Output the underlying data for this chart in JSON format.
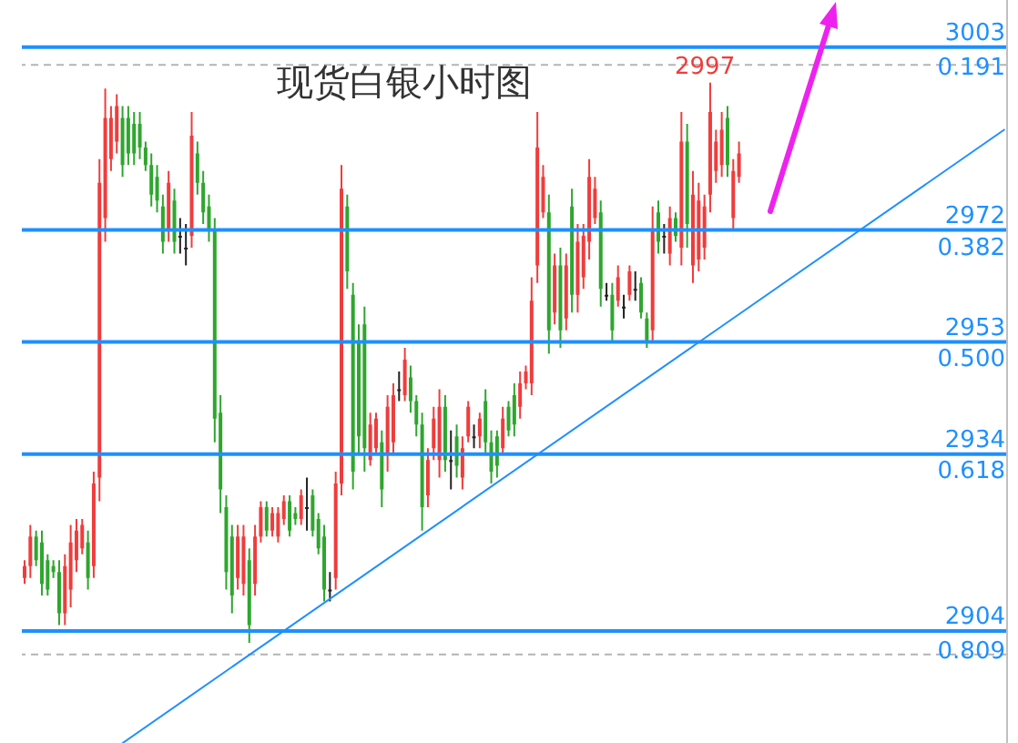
{
  "chart_data": {
    "type": "candlestick",
    "title": "现货白银小时图",
    "categories": [
      null,
      null,
      null,
      null,
      null,
      null,
      null,
      null,
      null,
      null,
      null,
      null,
      null,
      null,
      null,
      null,
      null,
      null,
      null,
      null,
      null,
      null,
      null,
      null,
      null,
      null,
      null,
      null,
      null,
      null,
      null,
      null,
      null,
      null,
      null,
      null,
      null,
      null,
      null,
      null,
      null,
      null,
      null,
      null,
      null,
      null,
      null,
      null,
      null,
      null,
      null,
      null,
      null,
      null,
      null,
      null,
      null,
      null,
      null,
      null,
      null,
      null,
      null,
      null,
      null,
      null,
      null,
      null,
      null,
      null,
      null,
      null,
      null,
      null,
      null,
      null,
      null,
      null,
      null,
      null,
      null,
      null,
      null,
      null,
      null,
      null,
      null,
      null,
      null,
      null,
      null,
      null,
      null,
      null,
      null,
      null,
      null,
      null,
      null,
      null,
      null,
      null,
      null,
      null,
      null,
      null,
      null,
      null,
      null,
      null,
      null,
      null,
      null,
      null,
      null,
      null,
      null,
      null,
      null,
      null,
      null,
      null,
      null,
      null,
      null,
      null,
      null,
      null,
      null,
      null,
      null,
      null,
      null,
      null,
      null,
      null,
      null,
      null,
      null,
      null,
      null,
      null,
      null,
      null,
      null,
      null,
      null,
      null,
      null,
      null,
      null,
      null,
      null,
      null,
      null,
      null,
      null,
      null,
      null,
      null,
      null,
      null,
      null,
      null,
      null,
      null,
      null,
      null,
      null,
      null,
      null
    ],
    "ohlc": [
      [
        2913,
        2916,
        2912,
        2915
      ],
      [
        2915,
        2922,
        2913,
        2920
      ],
      [
        2920,
        2921,
        2915,
        2916
      ],
      [
        2919,
        2921,
        2910,
        2912
      ],
      [
        2916,
        2917,
        2910,
        2911
      ],
      [
        2915,
        2916,
        2913,
        2914
      ],
      [
        2914,
        2916,
        2905,
        2907
      ],
      [
        2907,
        2917,
        2905,
        2915
      ],
      [
        2911,
        2922,
        2908,
        2919
      ],
      [
        2916,
        2923,
        2914,
        2921
      ],
      [
        2918,
        2923,
        2917,
        2922
      ],
      [
        2919,
        2921,
        2911,
        2913
      ],
      [
        2915,
        2931,
        2913,
        2929
      ],
      [
        2930,
        2984,
        2926,
        2980
      ],
      [
        2974,
        2996,
        2970,
        2991
      ],
      [
        2984,
        2993,
        2982,
        2991
      ],
      [
        2987,
        2995,
        2985,
        2993
      ],
      [
        2991,
        2993,
        2981,
        2983
      ],
      [
        2991,
        2993,
        2983,
        2985
      ],
      [
        2990,
        2992,
        2983,
        2985
      ],
      [
        2990,
        2992,
        2984,
        2986
      ],
      [
        2986,
        2987,
        2982,
        2983
      ],
      [
        2983,
        2985,
        2976,
        2978
      ],
      [
        2981,
        2983,
        2975,
        2977
      ],
      [
        2976,
        2978,
        2968,
        2970
      ],
      [
        2972,
        2982,
        2970,
        2980
      ],
      [
        2977,
        2979,
        2968,
        2970
      ],
      [
        2971,
        2974,
        2968,
        2971
      ],
      [
        2969,
        2973,
        2966,
        2969
      ],
      [
        2971,
        2992,
        2969,
        2988
      ],
      [
        2985,
        2987,
        2978,
        2980
      ],
      [
        2980,
        2982,
        2973,
        2975
      ],
      [
        2976,
        2978,
        2970,
        2972
      ],
      [
        2972,
        2974,
        2936,
        2940
      ],
      [
        2941,
        2944,
        2924,
        2928
      ],
      [
        2925,
        2927,
        2911,
        2914
      ],
      [
        2920,
        2922,
        2907,
        2910
      ],
      [
        2913,
        2922,
        2911,
        2920
      ],
      [
        2912,
        2922,
        2910,
        2920
      ],
      [
        2916,
        2918,
        2902,
        2905
      ],
      [
        2912,
        2922,
        2910,
        2920
      ],
      [
        2920,
        2926,
        2919,
        2925
      ],
      [
        2925,
        2926,
        2920,
        2921
      ],
      [
        2921,
        2925,
        2920,
        2924
      ],
      [
        2920,
        2925,
        2919,
        2924
      ],
      [
        2923,
        2927,
        2922,
        2926
      ],
      [
        2926,
        2927,
        2920,
        2921
      ],
      [
        2924,
        2925,
        2922,
        2923
      ],
      [
        2923,
        2928,
        2922,
        2927
      ],
      [
        2925,
        2930,
        2921,
        2925
      ],
      [
        2927,
        2928,
        2920,
        2921
      ],
      [
        2923,
        2924,
        2917,
        2918
      ],
      [
        2920,
        2922,
        2909,
        2911
      ],
      [
        2911,
        2914,
        2909,
        2911
      ],
      [
        2913,
        2931,
        2911,
        2929
      ],
      [
        2929,
        2983,
        2927,
        2979
      ],
      [
        2976,
        2978,
        2962,
        2965
      ],
      [
        2961,
        2963,
        2928,
        2931
      ],
      [
        2953,
        2956,
        2934,
        2937
      ],
      [
        2956,
        2959,
        2931,
        2935
      ],
      [
        2933,
        2941,
        2932,
        2939
      ],
      [
        2935,
        2941,
        2934,
        2940
      ],
      [
        2936,
        2938,
        2925,
        2928
      ],
      [
        2934,
        2944,
        2931,
        2942
      ],
      [
        2936,
        2946,
        2934,
        2944
      ],
      [
        2945,
        2948,
        2943,
        2945
      ],
      [
        2944,
        2952,
        2943,
        2950
      ],
      [
        2947,
        2949,
        2941,
        2943
      ],
      [
        2943,
        2944,
        2937,
        2939
      ],
      [
        2939,
        2941,
        2921,
        2925
      ],
      [
        2927,
        2935,
        2925,
        2933
      ],
      [
        2935,
        2942,
        2933,
        2940
      ],
      [
        2933,
        2945,
        2930,
        2942
      ],
      [
        2942,
        2944,
        2931,
        2933
      ],
      [
        2933,
        2938,
        2928,
        2933
      ],
      [
        2937,
        2939,
        2930,
        2932
      ],
      [
        2930,
        2937,
        2928,
        2935
      ],
      [
        2937,
        2943,
        2936,
        2942
      ],
      [
        2937,
        2939,
        2935,
        2937
      ],
      [
        2937,
        2941,
        2935,
        2940
      ],
      [
        2943,
        2945,
        2934,
        2936
      ],
      [
        2936,
        2938,
        2929,
        2931
      ],
      [
        2937,
        2938,
        2930,
        2932
      ],
      [
        2935,
        2942,
        2934,
        2940
      ],
      [
        2942,
        2943,
        2937,
        2938
      ],
      [
        2944,
        2946,
        2937,
        2939
      ],
      [
        2942,
        2948,
        2940,
        2946
      ],
      [
        2946,
        2949,
        2945,
        2948
      ],
      [
        2946,
        2964,
        2944,
        2960
      ],
      [
        2966,
        2992,
        2963,
        2986
      ],
      [
        2975,
        2983,
        2974,
        2981
      ],
      [
        2975,
        2978,
        2951,
        2955
      ],
      [
        2958,
        2968,
        2956,
        2966
      ],
      [
        2966,
        2969,
        2952,
        2955
      ],
      [
        2957,
        2968,
        2955,
        2966
      ],
      [
        2976,
        2979,
        2958,
        2961
      ],
      [
        2961,
        2973,
        2958,
        2970
      ],
      [
        2964,
        2973,
        2962,
        2971
      ],
      [
        2970,
        2984,
        2967,
        2981
      ],
      [
        2974,
        2981,
        2973,
        2979
      ],
      [
        2975,
        2977,
        2959,
        2962
      ],
      [
        2961,
        2963,
        2960,
        2961
      ],
      [
        2961,
        2963,
        2953,
        2955
      ],
      [
        2960,
        2966,
        2959,
        2964
      ],
      [
        2959,
        2961,
        2957,
        2959
      ],
      [
        2961,
        2966,
        2960,
        2965
      ],
      [
        2962,
        2965,
        2960,
        2962
      ],
      [
        2963,
        2964,
        2957,
        2958
      ],
      [
        2957,
        2958,
        2952,
        2953
      ],
      [
        2955,
        2976,
        2953,
        2972
      ],
      [
        2975,
        2977,
        2968,
        2970
      ],
      [
        2971,
        2973,
        2968,
        2971
      ],
      [
        2968,
        2976,
        2966,
        2974
      ],
      [
        2974,
        2975,
        2970,
        2971
      ],
      [
        2969,
        2992,
        2966,
        2987
      ],
      [
        2987,
        2990,
        2969,
        2973
      ],
      [
        2966,
        2982,
        2963,
        2978
      ],
      [
        2967,
        2980,
        2965,
        2977
      ],
      [
        2969,
        2978,
        2967,
        2976
      ],
      [
        2978,
        2997,
        2975,
        2992
      ],
      [
        2982,
        2989,
        2980,
        2987
      ],
      [
        2983,
        2992,
        2981,
        2989
      ],
      [
        2991,
        2993,
        2981,
        2983
      ],
      [
        2974,
        2984,
        2972,
        2982
      ],
      [
        2981,
        2987,
        2980,
        2985
      ],
      null,
      null,
      null,
      null,
      null,
      null,
      null,
      null,
      null,
      null,
      null,
      null,
      null,
      null,
      null,
      null,
      null,
      null,
      null,
      null,
      null,
      null,
      null,
      null,
      null,
      null,
      null,
      null,
      null,
      null,
      null,
      null,
      null,
      null,
      null,
      null,
      null,
      null,
      null,
      null,
      null,
      null,
      null,
      null,
      null,
      null
    ],
    "colors": [
      "#f03c3c",
      "#f03c3c",
      "#2ea62e",
      "#2ea62e",
      "#2ea62e",
      "#2ea62e",
      "#2ea62e",
      "#f03c3c",
      "#f03c3c",
      "#f03c3c",
      "#f03c3c",
      "#2ea62e",
      "#f03c3c",
      "#f03c3c",
      "#f03c3c",
      "#f03c3c",
      "#f03c3c",
      "#2ea62e",
      "#2ea62e",
      "#2ea62e",
      "#2ea62e",
      "#2ea62e",
      "#2ea62e",
      "#2ea62e",
      "#2ea62e",
      "#f03c3c",
      "#2ea62e",
      "#222222",
      "#222222",
      "#f03c3c",
      "#2ea62e",
      "#2ea62e",
      "#2ea62e",
      "#2ea62e",
      "#2ea62e",
      "#2ea62e",
      "#2ea62e",
      "#f03c3c",
      "#f03c3c",
      "#2ea62e",
      "#f03c3c",
      "#f03c3c",
      "#2ea62e",
      "#f03c3c",
      "#f03c3c",
      "#f03c3c",
      "#2ea62e",
      "#2ea62e",
      "#f03c3c",
      "#222222",
      "#2ea62e",
      "#2ea62e",
      "#2ea62e",
      "#222222",
      "#f03c3c",
      "#f03c3c",
      "#2ea62e",
      "#2ea62e",
      "#2ea62e",
      "#2ea62e",
      "#f03c3c",
      "#f03c3c",
      "#2ea62e",
      "#f03c3c",
      "#f03c3c",
      "#222222",
      "#f03c3c",
      "#2ea62e",
      "#2ea62e",
      "#2ea62e",
      "#f03c3c",
      "#f03c3c",
      "#f03c3c",
      "#2ea62e",
      "#222222",
      "#2ea62e",
      "#f03c3c",
      "#f03c3c",
      "#222222",
      "#f03c3c",
      "#2ea62e",
      "#2ea62e",
      "#2ea62e",
      "#f03c3c",
      "#2ea62e",
      "#2ea62e",
      "#f03c3c",
      "#f03c3c",
      "#f03c3c",
      "#f03c3c",
      "#f03c3c",
      "#2ea62e",
      "#f03c3c",
      "#2ea62e",
      "#f03c3c",
      "#2ea62e",
      "#f03c3c",
      "#f03c3c",
      "#f03c3c",
      "#f03c3c",
      "#2ea62e",
      "#222222",
      "#2ea62e",
      "#f03c3c",
      "#222222",
      "#f03c3c",
      "#222222",
      "#2ea62e",
      "#2ea62e",
      "#f03c3c",
      "#2ea62e",
      "#222222",
      "#f03c3c",
      "#2ea62e",
      "#f03c3c",
      "#2ea62e",
      "#f03c3c",
      "#f03c3c",
      "#f03c3c",
      "#f03c3c",
      "#f03c3c",
      "#f03c3c",
      "#2ea62e",
      "#f03c3c",
      "#f03c3c",
      null,
      null,
      null,
      null,
      null,
      null,
      null,
      null,
      null,
      null,
      null,
      null,
      null,
      null,
      null,
      null,
      null,
      null,
      null,
      null,
      null,
      null,
      null,
      null,
      null,
      null,
      null,
      null,
      null,
      null,
      null,
      null,
      null,
      null,
      null,
      null,
      null,
      null,
      null,
      null,
      null,
      null,
      null,
      null,
      null,
      null
    ],
    "series": [
      {
        "type": "line",
        "color": "#1e90ff",
        "values": [
          null,
          null,
          null,
          null,
          null,
          null,
          null,
          null,
          null,
          null,
          null,
          null,
          null,
          null,
          null,
          null,
          null,
          2885,
          null,
          null,
          null,
          null,
          null,
          null,
          null,
          null,
          null,
          null,
          null,
          null,
          null,
          null,
          null,
          null,
          null,
          null,
          null,
          null,
          null,
          null,
          null,
          null,
          null,
          null,
          null,
          null,
          null,
          null,
          null,
          null,
          null,
          null,
          null,
          null,
          null,
          null,
          null,
          null,
          null,
          null,
          null,
          null,
          null,
          null,
          null,
          null,
          null,
          null,
          null,
          null,
          null,
          null,
          null,
          null,
          null,
          null,
          null,
          null,
          null,
          null,
          null,
          null,
          null,
          null,
          null,
          null,
          null,
          null,
          null,
          null,
          null,
          null,
          null,
          null,
          null,
          null,
          null,
          null,
          null,
          null,
          null,
          null,
          null,
          null,
          null,
          null,
          null,
          null,
          null,
          null,
          null,
          null,
          null,
          null,
          null,
          null,
          null,
          null,
          null,
          null,
          null,
          null,
          null,
          null,
          null,
          null,
          null,
          null,
          null,
          null,
          null,
          null,
          null,
          null,
          null,
          null,
          null,
          null,
          null,
          null,
          null,
          null,
          null,
          null,
          null,
          null,
          null,
          null,
          null,
          null,
          null,
          null,
          null,
          null,
          null,
          null,
          null,
          null,
          null,
          null,
          null,
          null,
          null,
          null,
          null,
          null,
          null,
          null,
          null,
          null,
          2989
        ]
      }
    ],
    "ylim": [
      2885,
      3011
    ],
    "yticks": [
      2904,
      2934,
      2953,
      2972,
      3003
    ],
    "y2lim": [
      0.928,
      0.141
    ],
    "y2ticks": [
      0.191,
      0.382,
      {
        "value": 0.5,
        "label": "0.500"
      },
      0.618,
      0.809
    ],
    "tick_labels": "y",
    "ref_lines": [
      {
        "axis": "y",
        "value": 3003,
        "color": "#1e90ff"
      },
      {
        "axis": "y",
        "value": 2972,
        "color": "#1e90ff"
      },
      {
        "axis": "y",
        "value": 2953,
        "color": "#1e90ff"
      },
      {
        "axis": "y",
        "value": 2934,
        "color": "#1e90ff"
      },
      {
        "axis": "y",
        "value": 2904,
        "color": "#1e90ff"
      },
      {
        "axis": "y",
        "value": 3000,
        "color": "#b4b4b4",
        "line_style": "dashed"
      },
      {
        "axis": "y",
        "value": 2900,
        "color": "#b4b4b4",
        "line_style": "dashed"
      }
    ],
    "annotations": [
      {
        "text": "2997",
        "y": 2997
      }
    ]
  }
}
